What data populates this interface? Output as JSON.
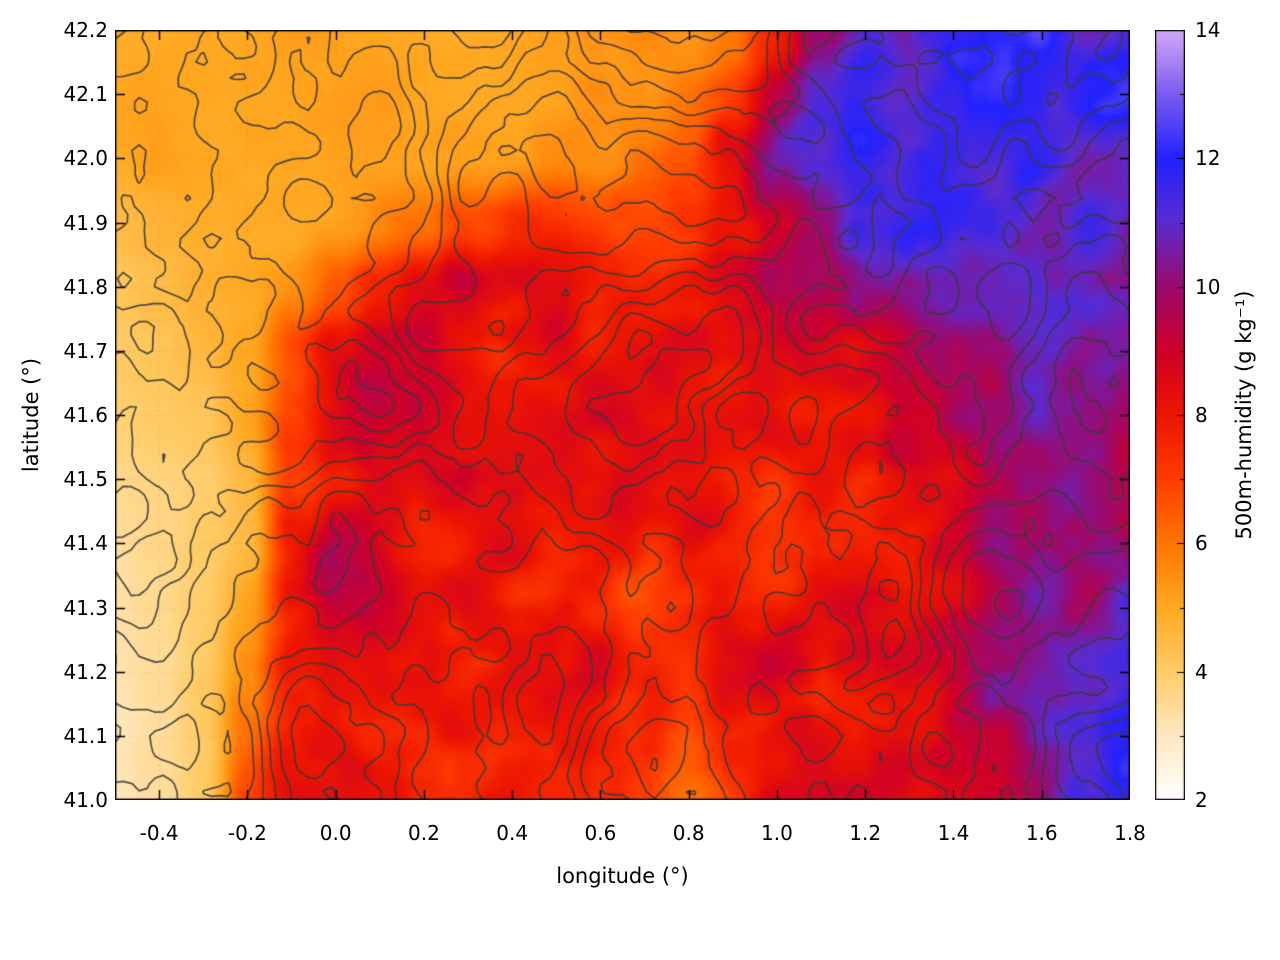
{
  "chart_data": {
    "type": "heatmap",
    "title": "",
    "xlabel": "longitude (°)",
    "ylabel": "latitude (°)",
    "colorbar_label": "500m-humidity (g kg⁻¹)",
    "x_range": [
      -0.5,
      1.8
    ],
    "y_range": [
      41.0,
      42.2
    ],
    "z_range": [
      2,
      14
    ],
    "x_tick_labels": [
      "-0.4",
      "-0.2",
      "0.0",
      "0.2",
      "0.4",
      "0.6",
      "0.8",
      "1.0",
      "1.2",
      "1.4",
      "1.6",
      "1.8"
    ],
    "y_tick_labels": [
      "41.0",
      "41.1",
      "41.2",
      "41.3",
      "41.4",
      "41.5",
      "41.6",
      "41.7",
      "41.8",
      "41.9",
      "42.0",
      "42.1",
      "42.2"
    ],
    "z_tick_labels": [
      "2",
      "4",
      "6",
      "8",
      "10",
      "12",
      "14"
    ],
    "grid_on": true,
    "legend_position": "colorbar-right",
    "palette": [
      [
        2,
        "#ffffff"
      ],
      [
        3,
        "#ffe8c0"
      ],
      [
        4,
        "#ffcc66"
      ],
      [
        5,
        "#ffa820"
      ],
      [
        6,
        "#ff7500"
      ],
      [
        7,
        "#ff3c00"
      ],
      [
        8,
        "#ee1500"
      ],
      [
        9,
        "#cf0028"
      ],
      [
        10,
        "#9c0a6e"
      ],
      [
        11,
        "#5a2bd0"
      ],
      [
        12,
        "#2222ff"
      ],
      [
        13,
        "#7a5cf0"
      ],
      [
        14,
        "#d2a9f8"
      ]
    ],
    "contour_color": "#3a3a3a",
    "frame_color": "#000000",
    "x_grid": {
      "start": -0.5,
      "step": 0.1,
      "n": 24
    },
    "y_grid": {
      "start": 42.2,
      "step": -0.1,
      "n": 13
    },
    "values_by_lat_desc": [
      [
        5,
        5,
        5,
        5,
        5,
        5,
        5,
        5,
        5,
        5,
        5,
        5.3,
        5.5,
        5.5,
        6,
        8,
        10.5,
        11.5,
        11,
        12,
        11.5,
        12,
        11,
        11.5
      ],
      [
        5,
        5,
        5,
        5,
        5,
        5,
        5,
        5,
        5,
        5,
        5.2,
        5.4,
        5.5,
        6,
        7,
        9,
        11,
        12,
        11.5,
        12,
        12,
        11.5,
        12,
        12
      ],
      [
        4.8,
        5,
        5,
        5,
        5,
        5,
        5,
        5,
        5,
        5,
        5.4,
        5.5,
        6,
        6.5,
        8,
        10,
        11,
        12,
        11.5,
        12,
        11.5,
        12,
        11,
        11
      ],
      [
        4.5,
        4.8,
        5,
        5,
        5,
        5.2,
        5.5,
        6,
        6.5,
        7,
        7,
        6.8,
        7,
        7.5,
        8,
        9,
        10,
        11,
        12,
        12,
        11.5,
        11,
        12,
        11
      ],
      [
        4.2,
        4.5,
        4.8,
        5,
        5.5,
        6.5,
        7.5,
        8,
        8.5,
        8,
        8,
        8,
        8,
        8,
        8.5,
        9,
        9.5,
        10,
        10,
        10.5,
        10.5,
        11,
        11,
        10.5
      ],
      [
        4,
        4.2,
        4.5,
        5,
        6.5,
        8,
        8.5,
        9,
        8.5,
        8,
        8.5,
        8,
        8,
        8.5,
        8.5,
        8.5,
        9,
        9,
        9.5,
        10,
        10,
        10.5,
        10,
        10
      ],
      [
        3.8,
        4,
        4.2,
        5,
        7,
        8.5,
        9,
        9,
        8.5,
        8.5,
        8,
        8.5,
        8,
        8,
        8,
        8.5,
        7.5,
        8,
        9,
        9.5,
        10,
        10.5,
        10,
        9.5
      ],
      [
        3.6,
        3.8,
        4,
        4.5,
        7,
        8.5,
        9,
        8.5,
        9,
        8.5,
        8.5,
        8,
        8.5,
        8,
        7.5,
        7,
        8,
        8,
        9,
        8.5,
        9.5,
        10,
        10.5,
        9.5
      ],
      [
        3.5,
        3.7,
        4,
        4.5,
        7.5,
        9,
        8.5,
        7.5,
        8,
        8.5,
        8,
        8.5,
        8,
        8.5,
        8,
        7.5,
        8,
        8.5,
        8,
        9,
        10,
        10,
        10,
        9.5
      ],
      [
        3.4,
        3.6,
        4,
        5,
        7.5,
        8.5,
        9,
        8,
        8.5,
        8,
        8.5,
        8,
        7,
        7.5,
        8,
        8,
        8.5,
        9,
        8.5,
        9,
        9.5,
        10.5,
        10,
        11
      ],
      [
        3.3,
        3.5,
        4,
        5.5,
        8,
        8.5,
        9,
        8.5,
        8,
        8.5,
        8,
        8.5,
        7.5,
        7,
        8,
        8.5,
        8,
        8.5,
        9,
        9,
        10,
        10,
        11,
        11.5
      ],
      [
        3.1,
        3.4,
        4,
        6,
        8,
        8.5,
        8,
        8.5,
        8.5,
        8,
        8.5,
        8,
        7.5,
        6.5,
        7.5,
        8,
        8.5,
        8,
        8.5,
        9,
        9.5,
        10.5,
        11,
        12
      ],
      [
        3,
        3.3,
        4,
        6.5,
        8,
        8,
        8.5,
        8,
        8,
        8.5,
        8,
        7.5,
        7,
        6,
        7,
        8,
        8,
        8.5,
        8,
        9,
        9.5,
        10,
        11.5,
        12
      ]
    ]
  }
}
